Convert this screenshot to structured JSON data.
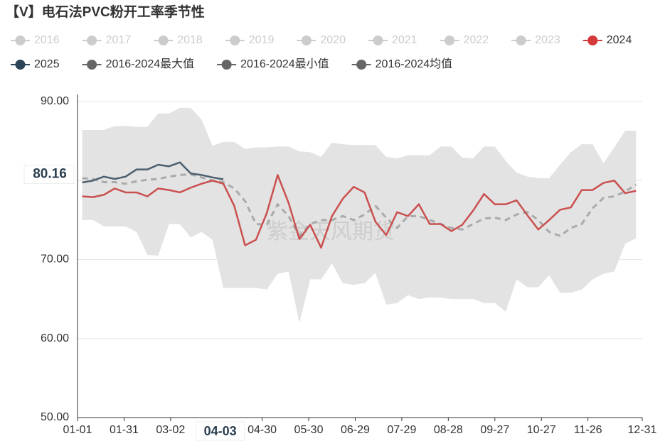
{
  "chart_data": {
    "type": "line",
    "title": "【V】电石法PVC粉开工率季节性",
    "annotation": "紫金天风期货",
    "legend_hidden": {
      "names": [
        "2016",
        "2017",
        "2018",
        "2019",
        "2020",
        "2021",
        "2022",
        "2023"
      ],
      "color": "#cccccc"
    },
    "x": [
      3,
      10,
      17,
      24,
      31,
      38,
      45,
      52,
      59,
      66,
      73,
      80,
      87,
      94,
      101,
      108,
      115,
      122,
      129,
      136,
      143,
      150,
      157,
      164,
      171,
      178,
      185,
      192,
      199,
      206,
      213,
      220,
      227,
      234,
      241,
      248,
      255,
      262,
      269,
      276,
      283,
      290,
      297,
      304,
      311,
      318,
      325,
      332,
      339,
      346,
      353,
      360
    ],
    "xlim": [
      0,
      364
    ],
    "xticks": [
      {
        "value": 0,
        "label": "01-01"
      },
      {
        "value": 30,
        "label": "01-31"
      },
      {
        "value": 60,
        "label": "03-02"
      },
      {
        "value": 119,
        "label": "04-30"
      },
      {
        "value": 149,
        "label": "05-30"
      },
      {
        "value": 179,
        "label": "06-29"
      },
      {
        "value": 209,
        "label": "07-29"
      },
      {
        "value": 239,
        "label": "08-28"
      },
      {
        "value": 269,
        "label": "09-27"
      },
      {
        "value": 299,
        "label": "10-27"
      },
      {
        "value": 329,
        "label": "11-26"
      },
      {
        "value": 364,
        "label": "12-31"
      }
    ],
    "ylim": [
      50,
      90
    ],
    "yticks": [
      {
        "value": 50,
        "label": "50.00"
      },
      {
        "value": 60,
        "label": "60.00"
      },
      {
        "value": 70,
        "label": "70.00"
      },
      {
        "value": 80,
        "label": "80.00"
      },
      {
        "value": 90,
        "label": "90.00"
      }
    ],
    "grid": true,
    "band_color": "#e3e3e3",
    "pointer": {
      "x": 92,
      "label": "04-03",
      "y": 80.16
    },
    "series": [
      {
        "name": "2024",
        "color": "#c9504f",
        "legend_color": "#d43a3a",
        "style": "solid",
        "values": [
          78.0,
          77.9,
          78.2,
          79.0,
          78.5,
          78.5,
          78.0,
          79.0,
          78.8,
          78.5,
          79.1,
          79.6,
          80.0,
          79.6,
          76.8,
          71.8,
          72.5,
          75.9,
          80.7,
          77.2,
          72.6,
          74.4,
          71.5,
          75.5,
          77.7,
          79.2,
          78.5,
          74.8,
          73.1,
          76.0,
          75.5,
          77.0,
          74.5,
          74.5,
          73.6,
          74.4,
          76.2,
          78.3,
          77.0,
          77.0,
          77.5,
          75.6,
          73.8,
          75.0,
          76.3,
          76.6,
          78.8,
          78.8,
          79.7,
          80.0,
          78.4,
          78.7
        ]
      },
      {
        "name": "2025",
        "color": "#4d5f6e",
        "legend_color": "#2b4457",
        "style": "solid",
        "values": [
          79.75,
          80.0,
          80.5,
          80.2,
          80.5,
          81.4,
          81.4,
          82.0,
          81.8,
          82.3,
          80.9,
          80.7,
          80.4,
          80.16,
          null,
          null,
          null,
          null,
          null,
          null,
          null,
          null,
          null,
          null,
          null,
          null,
          null,
          null,
          null,
          null,
          null,
          null,
          null,
          null,
          null,
          null,
          null,
          null,
          null,
          null,
          null,
          null,
          null,
          null,
          null,
          null,
          null,
          null,
          null,
          null,
          null,
          null
        ]
      },
      {
        "name": "2016-2024最大值",
        "color": "#e3e3e3",
        "legend_color": "#666666",
        "style": "band-max",
        "values": [
          86.4,
          86.4,
          86.4,
          86.9,
          86.9,
          86.8,
          86.8,
          88.5,
          88.5,
          89.2,
          89.2,
          87.7,
          84.4,
          84.9,
          84.9,
          84.0,
          84.2,
          84.2,
          84.3,
          84.3,
          83.7,
          83.6,
          83.0,
          84.8,
          84.6,
          84.5,
          84.5,
          84.5,
          83.0,
          82.8,
          83.2,
          83.2,
          83.2,
          84.3,
          84.3,
          82.9,
          82.8,
          84.3,
          84.3,
          82.5,
          81.0,
          80.5,
          80.3,
          80.3,
          82.0,
          83.6,
          84.6,
          84.6,
          82.2,
          84.2,
          86.3,
          86.3
        ]
      },
      {
        "name": "2016-2024最小值",
        "color": "#e3e3e3",
        "legend_color": "#666666",
        "style": "band-min",
        "values": [
          75.0,
          75.0,
          74.2,
          74.2,
          74.2,
          73.5,
          70.6,
          70.5,
          74.5,
          74.5,
          72.8,
          73.5,
          72.5,
          66.4,
          66.4,
          66.4,
          66.4,
          66.2,
          68.2,
          68.5,
          62.0,
          67.5,
          67.5,
          69.5,
          67.0,
          66.8,
          67.0,
          68.3,
          64.3,
          64.5,
          65.5,
          65.0,
          65.2,
          65.2,
          65.0,
          65.0,
          65.0,
          64.5,
          64.5,
          63.4,
          67.5,
          66.5,
          66.5,
          68.0,
          65.8,
          65.8,
          66.2,
          67.5,
          68.2,
          68.5,
          72.0,
          72.7
        ]
      },
      {
        "name": "2016-2024均值",
        "color": "#aaaaaa",
        "legend_color": "#666666",
        "style": "dashed",
        "values": [
          80.3,
          80.2,
          79.8,
          79.8,
          79.6,
          79.9,
          80.1,
          80.2,
          80.5,
          80.7,
          80.8,
          80.4,
          80.0,
          79.8,
          79.0,
          77.4,
          74.5,
          74.4,
          77.0,
          75.5,
          73.0,
          74.5,
          75.0,
          75.0,
          75.5,
          75.0,
          75.7,
          76.8,
          75.3,
          74.0,
          75.5,
          75.5,
          75.0,
          74.5,
          74.0,
          73.8,
          74.5,
          75.2,
          75.3,
          75.0,
          75.7,
          76.0,
          75.0,
          73.5,
          73.0,
          74.0,
          74.5,
          76.5,
          77.8,
          78.0,
          78.6,
          79.5
        ]
      }
    ]
  }
}
